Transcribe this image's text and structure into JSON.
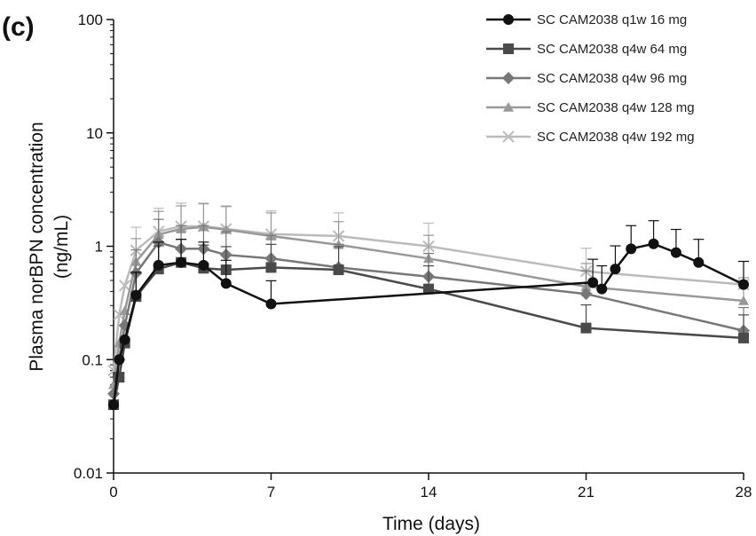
{
  "panel_label": "(c)",
  "chart_data": {
    "type": "line",
    "xlabel": "Time (days)",
    "ylabel_line1": "Plasma norBPN concentration",
    "ylabel_line2": "(ng/mL)",
    "xlim": [
      0,
      28
    ],
    "ylim": [
      0.01,
      100
    ],
    "y_scale": "log",
    "x_ticks": [
      0,
      7,
      14,
      21,
      28
    ],
    "x_tick_labels": [
      "0",
      "7",
      "14",
      "21",
      "28"
    ],
    "y_ticks": [
      0.01,
      0.1,
      1,
      10,
      100
    ],
    "y_tick_labels": [
      "0.01",
      "0.1",
      "1",
      "10",
      "100"
    ],
    "grid": false,
    "legend_position": "top-right",
    "series": [
      {
        "name": "SC CAM2038 q1w 16 mg",
        "color": "#111111",
        "marker": "circle",
        "points": [
          {
            "x": 0,
            "y": 0.04
          },
          {
            "x": 0.25,
            "y": 0.1
          },
          {
            "x": 0.5,
            "y": 0.15
          },
          {
            "x": 1,
            "y": 0.37
          },
          {
            "x": 2,
            "y": 0.68
          },
          {
            "x": 3,
            "y": 0.72
          },
          {
            "x": 4,
            "y": 0.68
          },
          {
            "x": 5,
            "y": 0.47
          },
          {
            "x": 7,
            "y": 0.31
          },
          {
            "x": 21.3,
            "y": 0.48
          },
          {
            "x": 21.7,
            "y": 0.42
          },
          {
            "x": 22.3,
            "y": 0.63
          },
          {
            "x": 23,
            "y": 0.95
          },
          {
            "x": 24,
            "y": 1.05
          },
          {
            "x": 25,
            "y": 0.88
          },
          {
            "x": 26,
            "y": 0.72
          },
          {
            "x": 28,
            "y": 0.46
          }
        ]
      },
      {
        "name": "SC CAM2038 q4w 64 mg",
        "color": "#4a4a4a",
        "marker": "square",
        "points": [
          {
            "x": 0,
            "y": 0.04
          },
          {
            "x": 0.25,
            "y": 0.07
          },
          {
            "x": 0.5,
            "y": 0.14
          },
          {
            "x": 1,
            "y": 0.36
          },
          {
            "x": 2,
            "y": 0.63
          },
          {
            "x": 3,
            "y": 0.72
          },
          {
            "x": 4,
            "y": 0.64
          },
          {
            "x": 5,
            "y": 0.62
          },
          {
            "x": 7,
            "y": 0.65
          },
          {
            "x": 10,
            "y": 0.62
          },
          {
            "x": 14,
            "y": 0.42
          },
          {
            "x": 21,
            "y": 0.19
          },
          {
            "x": 28,
            "y": 0.155
          }
        ]
      },
      {
        "name": "SC CAM2038 q4w 96 mg",
        "color": "#777777",
        "marker": "diamond",
        "points": [
          {
            "x": 0,
            "y": 0.05
          },
          {
            "x": 0.25,
            "y": 0.1
          },
          {
            "x": 0.5,
            "y": 0.2
          },
          {
            "x": 1,
            "y": 0.58
          },
          {
            "x": 2,
            "y": 1.08
          },
          {
            "x": 3,
            "y": 0.95
          },
          {
            "x": 4,
            "y": 0.95
          },
          {
            "x": 5,
            "y": 0.84
          },
          {
            "x": 7,
            "y": 0.78
          },
          {
            "x": 10,
            "y": 0.65
          },
          {
            "x": 14,
            "y": 0.54
          },
          {
            "x": 21,
            "y": 0.38
          },
          {
            "x": 28,
            "y": 0.18
          }
        ]
      },
      {
        "name": "SC CAM2038 q4w 128 mg",
        "color": "#999999",
        "marker": "triangle",
        "points": [
          {
            "x": 0,
            "y": 0.06
          },
          {
            "x": 0.25,
            "y": 0.14
          },
          {
            "x": 0.5,
            "y": 0.27
          },
          {
            "x": 1,
            "y": 0.73
          },
          {
            "x": 2,
            "y": 1.27
          },
          {
            "x": 3,
            "y": 1.42
          },
          {
            "x": 4,
            "y": 1.48
          },
          {
            "x": 5,
            "y": 1.4
          },
          {
            "x": 7,
            "y": 1.23
          },
          {
            "x": 10,
            "y": 1.03
          },
          {
            "x": 14,
            "y": 0.78
          },
          {
            "x": 21,
            "y": 0.44
          },
          {
            "x": 28,
            "y": 0.33
          }
        ]
      },
      {
        "name": "SC CAM2038 q4w 192 mg",
        "color": "#bbbbbb",
        "marker": "cross",
        "points": [
          {
            "x": 0,
            "y": 0.08
          },
          {
            "x": 0.25,
            "y": 0.25
          },
          {
            "x": 0.5,
            "y": 0.45
          },
          {
            "x": 1,
            "y": 0.92
          },
          {
            "x": 2,
            "y": 1.35
          },
          {
            "x": 3,
            "y": 1.5
          },
          {
            "x": 4,
            "y": 1.5
          },
          {
            "x": 5,
            "y": 1.42
          },
          {
            "x": 7,
            "y": 1.28
          },
          {
            "x": 10,
            "y": 1.23
          },
          {
            "x": 14,
            "y": 1.0
          },
          {
            "x": 21,
            "y": 0.6
          },
          {
            "x": 28,
            "y": 0.46
          }
        ]
      }
    ]
  }
}
